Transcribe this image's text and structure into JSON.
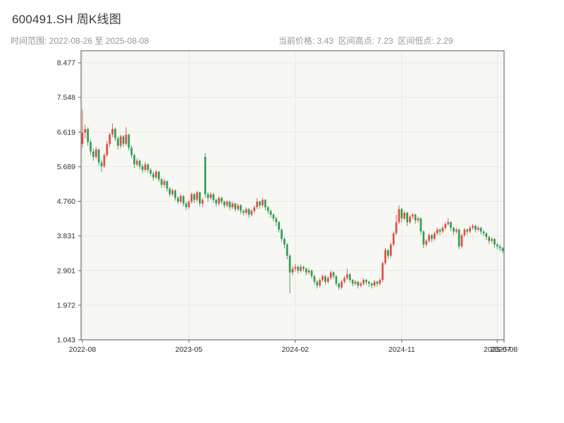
{
  "header": {
    "title": "600491.SH 周K线图",
    "time_range": "时间范围: 2022-08-26 至 2025-08-08",
    "stats": "当前价格: 3.43  区间高点: 7.23  区间低点: 2.29"
  },
  "chart_data": {
    "type": "candlestick",
    "symbol": "600491.SH",
    "period": "weekly",
    "title": "600491.SH 周K线图",
    "start_date": "2022-08-26",
    "end_date": "2025-08-08",
    "current_price": 3.43,
    "range_high": 7.23,
    "range_low": 2.29,
    "ylim": [
      1.043,
      8.8
    ],
    "y_ticks": [
      1.043,
      1.972,
      2.901,
      3.831,
      4.76,
      5.689,
      6.619,
      7.548,
      8.477
    ],
    "x_ticks": [
      {
        "label": "2022-08",
        "i": 0
      },
      {
        "label": "2023-05",
        "i": 39
      },
      {
        "label": "2024-02",
        "i": 78
      },
      {
        "label": "2024-11",
        "i": 117
      },
      {
        "label": "2025-07",
        "i": 152
      },
      {
        "label": "2025-08",
        "i": 156
      }
    ],
    "colors": {
      "up": "#dd4f43",
      "down": "#2f9e53",
      "grid": "#e7e7e4",
      "spine": "#5a5a5a",
      "plot_bg": "#f7f7f4",
      "tick_label": "#2e2e2e"
    },
    "ohlc": [
      [
        6.3,
        7.23,
        6.2,
        6.6
      ],
      [
        6.6,
        6.82,
        6.45,
        6.7
      ],
      [
        6.7,
        6.75,
        6.25,
        6.35
      ],
      [
        6.35,
        6.42,
        6.0,
        6.1
      ],
      [
        6.1,
        6.18,
        5.85,
        5.95
      ],
      [
        5.95,
        6.22,
        5.9,
        6.15
      ],
      [
        6.15,
        6.18,
        5.72,
        5.8
      ],
      [
        5.8,
        5.88,
        5.55,
        5.7
      ],
      [
        5.7,
        6.05,
        5.65,
        6.0
      ],
      [
        6.0,
        6.38,
        5.95,
        6.3
      ],
      [
        6.3,
        6.6,
        6.22,
        6.55
      ],
      [
        6.55,
        6.85,
        6.48,
        6.7
      ],
      [
        6.7,
        6.74,
        6.38,
        6.45
      ],
      [
        6.45,
        6.5,
        6.15,
        6.25
      ],
      [
        6.25,
        6.55,
        6.18,
        6.5
      ],
      [
        6.5,
        6.54,
        6.22,
        6.3
      ],
      [
        6.3,
        6.75,
        6.25,
        6.55
      ],
      [
        6.55,
        6.58,
        6.12,
        6.2
      ],
      [
        6.2,
        6.26,
        5.92,
        6.0
      ],
      [
        6.0,
        6.04,
        5.65,
        5.75
      ],
      [
        5.75,
        5.92,
        5.7,
        5.85
      ],
      [
        5.85,
        5.88,
        5.62,
        5.7
      ],
      [
        5.7,
        5.76,
        5.52,
        5.6
      ],
      [
        5.6,
        5.82,
        5.55,
        5.75
      ],
      [
        5.75,
        5.78,
        5.52,
        5.6
      ],
      [
        5.6,
        5.65,
        5.42,
        5.5
      ],
      [
        5.5,
        5.55,
        5.32,
        5.4
      ],
      [
        5.4,
        5.6,
        5.35,
        5.55
      ],
      [
        5.55,
        5.58,
        5.28,
        5.35
      ],
      [
        5.35,
        5.4,
        5.12,
        5.2
      ],
      [
        5.2,
        5.36,
        5.14,
        5.3
      ],
      [
        5.3,
        5.33,
        5.02,
        5.1
      ],
      [
        5.1,
        5.14,
        4.88,
        4.95
      ],
      [
        4.95,
        5.1,
        4.9,
        5.05
      ],
      [
        5.05,
        5.08,
        4.78,
        4.85
      ],
      [
        4.85,
        4.9,
        4.68,
        4.75
      ],
      [
        4.75,
        4.95,
        4.7,
        4.9
      ],
      [
        4.9,
        4.93,
        4.62,
        4.7
      ],
      [
        4.7,
        4.75,
        4.52,
        4.6
      ],
      [
        4.6,
        4.8,
        4.55,
        4.75
      ],
      [
        4.75,
        5.0,
        4.7,
        4.95
      ],
      [
        4.95,
        4.98,
        4.72,
        4.8
      ],
      [
        4.8,
        5.05,
        4.75,
        5.0
      ],
      [
        5.0,
        5.02,
        4.62,
        4.7
      ],
      [
        4.7,
        4.85,
        4.6,
        4.8
      ],
      [
        5.95,
        6.05,
        4.85,
        4.95
      ],
      [
        4.95,
        5.0,
        4.75,
        4.85
      ],
      [
        4.85,
        5.0,
        4.8,
        4.95
      ],
      [
        4.95,
        4.98,
        4.72,
        4.8
      ],
      [
        4.8,
        4.84,
        4.62,
        4.7
      ],
      [
        4.7,
        4.9,
        4.65,
        4.85
      ],
      [
        4.85,
        4.88,
        4.68,
        4.75
      ],
      [
        4.75,
        4.78,
        4.58,
        4.65
      ],
      [
        4.65,
        4.8,
        4.6,
        4.75
      ],
      [
        4.75,
        4.78,
        4.52,
        4.6
      ],
      [
        4.6,
        4.75,
        4.55,
        4.7
      ],
      [
        4.7,
        4.72,
        4.48,
        4.55
      ],
      [
        4.55,
        4.7,
        4.5,
        4.65
      ],
      [
        4.65,
        4.68,
        4.42,
        4.5
      ],
      [
        4.5,
        4.54,
        4.38,
        4.45
      ],
      [
        4.45,
        4.6,
        4.4,
        4.55
      ],
      [
        4.55,
        4.58,
        4.32,
        4.4
      ],
      [
        4.4,
        4.55,
        4.35,
        4.5
      ],
      [
        4.5,
        4.65,
        4.45,
        4.6
      ],
      [
        4.6,
        4.85,
        4.55,
        4.75
      ],
      [
        4.75,
        4.78,
        4.56,
        4.65
      ],
      [
        4.65,
        4.85,
        4.6,
        4.8
      ],
      [
        4.8,
        4.82,
        4.52,
        4.6
      ],
      [
        4.6,
        4.64,
        4.42,
        4.5
      ],
      [
        4.5,
        4.54,
        4.32,
        4.4
      ],
      [
        4.4,
        4.44,
        4.22,
        4.3
      ],
      [
        4.3,
        4.35,
        4.1,
        4.2
      ],
      [
        4.2,
        4.24,
        3.92,
        4.0
      ],
      [
        4.0,
        4.04,
        3.66,
        3.75
      ],
      [
        3.75,
        3.8,
        3.5,
        3.6
      ],
      [
        3.6,
        3.64,
        3.2,
        3.3
      ],
      [
        3.3,
        3.34,
        2.29,
        2.85
      ],
      [
        2.85,
        3.02,
        2.78,
        2.95
      ],
      [
        2.95,
        3.08,
        2.88,
        3.0
      ],
      [
        3.0,
        3.04,
        2.82,
        2.9
      ],
      [
        2.9,
        3.06,
        2.85,
        3.0
      ],
      [
        3.0,
        3.03,
        2.88,
        2.95
      ],
      [
        2.95,
        2.98,
        2.78,
        2.85
      ],
      [
        2.85,
        2.96,
        2.8,
        2.9
      ],
      [
        2.9,
        2.93,
        2.68,
        2.75
      ],
      [
        2.75,
        2.79,
        2.52,
        2.6
      ],
      [
        2.6,
        2.64,
        2.42,
        2.5
      ],
      [
        2.5,
        2.7,
        2.45,
        2.65
      ],
      [
        2.65,
        2.8,
        2.6,
        2.75
      ],
      [
        2.75,
        2.78,
        2.52,
        2.6
      ],
      [
        2.6,
        2.75,
        2.55,
        2.7
      ],
      [
        2.7,
        2.9,
        2.65,
        2.85
      ],
      [
        2.85,
        2.88,
        2.68,
        2.75
      ],
      [
        2.75,
        2.78,
        2.48,
        2.55
      ],
      [
        2.55,
        2.58,
        2.38,
        2.45
      ],
      [
        2.45,
        2.65,
        2.4,
        2.6
      ],
      [
        2.6,
        2.75,
        2.55,
        2.7
      ],
      [
        2.7,
        2.95,
        2.65,
        2.8
      ],
      [
        2.8,
        2.83,
        2.58,
        2.65
      ],
      [
        2.65,
        2.68,
        2.47,
        2.55
      ],
      [
        2.55,
        2.65,
        2.5,
        2.6
      ],
      [
        2.6,
        2.62,
        2.42,
        2.5
      ],
      [
        2.5,
        2.6,
        2.45,
        2.55
      ],
      [
        2.55,
        2.7,
        2.5,
        2.65
      ],
      [
        2.65,
        2.68,
        2.52,
        2.6
      ],
      [
        2.6,
        2.63,
        2.46,
        2.55
      ],
      [
        2.55,
        2.58,
        2.42,
        2.5
      ],
      [
        2.5,
        2.65,
        2.45,
        2.6
      ],
      [
        2.6,
        2.63,
        2.47,
        2.55
      ],
      [
        2.55,
        2.7,
        2.5,
        2.65
      ],
      [
        2.65,
        3.15,
        2.6,
        3.1
      ],
      [
        3.1,
        3.5,
        3.05,
        3.45
      ],
      [
        3.45,
        3.48,
        3.22,
        3.3
      ],
      [
        3.3,
        3.65,
        3.25,
        3.6
      ],
      [
        3.6,
        3.95,
        3.55,
        3.9
      ],
      [
        3.9,
        4.4,
        3.85,
        4.2
      ],
      [
        4.2,
        4.65,
        4.15,
        4.55
      ],
      [
        4.55,
        4.58,
        4.2,
        4.3
      ],
      [
        4.3,
        4.5,
        4.25,
        4.45
      ],
      [
        4.45,
        4.48,
        4.1,
        4.2
      ],
      [
        4.2,
        4.4,
        4.15,
        4.35
      ],
      [
        4.35,
        4.45,
        4.28,
        4.4
      ],
      [
        4.4,
        4.43,
        4.16,
        4.25
      ],
      [
        4.25,
        4.35,
        4.18,
        4.3
      ],
      [
        4.3,
        4.33,
        3.86,
        3.95
      ],
      [
        3.95,
        3.98,
        3.5,
        3.6
      ],
      [
        3.6,
        3.75,
        3.55,
        3.7
      ],
      [
        3.7,
        3.9,
        3.65,
        3.85
      ],
      [
        3.85,
        3.88,
        3.66,
        3.75
      ],
      [
        3.75,
        3.95,
        3.7,
        3.9
      ],
      [
        3.9,
        4.05,
        3.85,
        4.0
      ],
      [
        4.0,
        4.03,
        3.86,
        3.95
      ],
      [
        3.95,
        4.1,
        3.9,
        4.05
      ],
      [
        4.05,
        4.2,
        4.0,
        4.15
      ],
      [
        4.15,
        4.3,
        4.1,
        4.2
      ],
      [
        4.2,
        4.23,
        3.96,
        4.05
      ],
      [
        4.05,
        4.08,
        3.86,
        3.95
      ],
      [
        3.95,
        4.05,
        3.9,
        4.0
      ],
      [
        4.0,
        4.03,
        3.48,
        3.55
      ],
      [
        3.55,
        3.9,
        3.5,
        3.85
      ],
      [
        3.85,
        4.05,
        3.8,
        4.0
      ],
      [
        4.0,
        4.03,
        3.86,
        3.95
      ],
      [
        3.95,
        4.1,
        3.9,
        4.05
      ],
      [
        4.05,
        4.15,
        4.0,
        4.1
      ],
      [
        4.1,
        4.13,
        3.92,
        4.0
      ],
      [
        4.0,
        4.1,
        3.95,
        4.05
      ],
      [
        4.05,
        4.08,
        3.87,
        3.95
      ],
      [
        3.95,
        3.98,
        3.82,
        3.9
      ],
      [
        3.9,
        3.93,
        3.72,
        3.8
      ],
      [
        3.8,
        3.84,
        3.62,
        3.7
      ],
      [
        3.7,
        3.8,
        3.65,
        3.75
      ],
      [
        3.75,
        3.78,
        3.52,
        3.6
      ],
      [
        3.6,
        3.64,
        3.47,
        3.55
      ],
      [
        3.55,
        3.6,
        3.42,
        3.5
      ],
      [
        3.5,
        3.54,
        3.36,
        3.43
      ]
    ]
  }
}
